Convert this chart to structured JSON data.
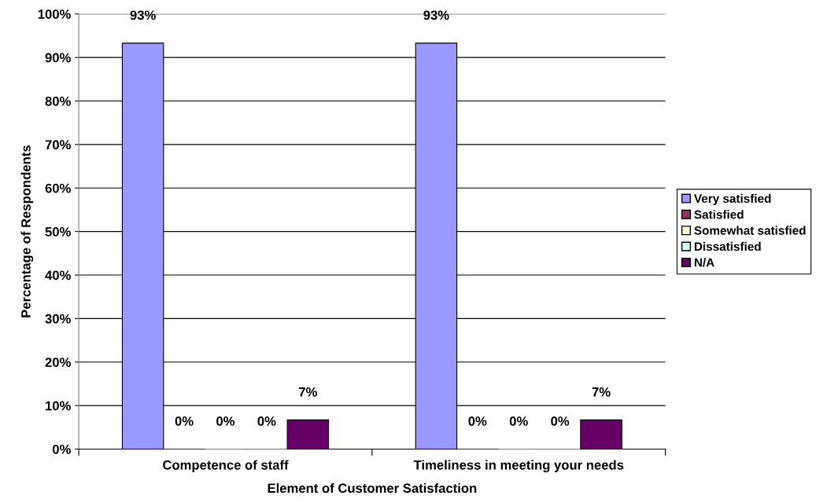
{
  "chart_data": {
    "type": "bar",
    "xlabel": "Element of Customer Satisfaction",
    "ylabel": "Percentage of Respondents",
    "categories": [
      "Competence of staff",
      "Timeliness in meeting your needs"
    ],
    "series": [
      {
        "name": "Very satisfied",
        "color": "#9999ff",
        "values": [
          93.3,
          93.3
        ],
        "value_labels": [
          "93%",
          "93%"
        ]
      },
      {
        "name": "Satisfied",
        "color": "#993366",
        "values": [
          0,
          0
        ],
        "value_labels": [
          "0%",
          "0%"
        ]
      },
      {
        "name": "Somewhat satisfied",
        "color": "#ffffcc",
        "values": [
          0,
          0
        ],
        "value_labels": [
          "0%",
          "0%"
        ]
      },
      {
        "name": "Dissatisfied",
        "color": "#ccffff",
        "values": [
          0,
          0
        ],
        "value_labels": [
          "0%",
          "0%"
        ]
      },
      {
        "name": "N/A",
        "color": "#660066",
        "values": [
          6.7,
          6.7
        ],
        "value_labels": [
          "7%",
          "7%"
        ]
      }
    ],
    "ylim": [
      0,
      100
    ],
    "yticks": [
      {
        "value": 0,
        "label": "0%"
      },
      {
        "value": 10,
        "label": "10%"
      },
      {
        "value": 20,
        "label": "20%"
      },
      {
        "value": 30,
        "label": "30%"
      },
      {
        "value": 40,
        "label": "40%"
      },
      {
        "value": 50,
        "label": "50%"
      },
      {
        "value": 60,
        "label": "60%"
      },
      {
        "value": 70,
        "label": "70%"
      },
      {
        "value": 80,
        "label": "80%"
      },
      {
        "value": 90,
        "label": "90%"
      },
      {
        "value": 100,
        "label": "100%"
      }
    ],
    "grid": "y",
    "legend": "right"
  }
}
